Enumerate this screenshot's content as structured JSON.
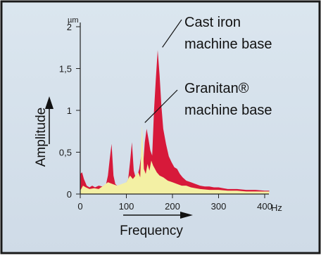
{
  "chart_data": {
    "type": "area",
    "y_unit": "µm",
    "x_unit": "Hz",
    "ylabel": "Amplitude",
    "xlabel": "Frequency",
    "xlim": [
      0,
      420
    ],
    "ylim": [
      0,
      2.2
    ],
    "x_ticks": [
      0,
      100,
      200,
      300,
      400
    ],
    "x_tick_labels": [
      "0",
      "100",
      "200",
      "300",
      "400"
    ],
    "y_ticks": [
      0,
      0.5,
      1,
      1.5,
      2
    ],
    "y_tick_labels": [
      "0",
      "0,5",
      "1",
      "1,5",
      "2"
    ],
    "grid": false,
    "series": [
      {
        "name": "Cast iron machine base",
        "color": "#d7193a",
        "x": [
          0,
          4,
          8,
          14,
          20,
          26,
          32,
          40,
          48,
          56,
          60,
          64,
          68,
          72,
          76,
          80,
          86,
          92,
          98,
          104,
          108,
          112,
          116,
          120,
          124,
          128,
          132,
          136,
          140,
          144,
          148,
          152,
          156,
          160,
          164,
          168,
          172,
          176,
          180,
          186,
          192,
          198,
          204,
          210,
          216,
          222,
          230,
          240,
          250,
          260,
          270,
          280,
          290,
          300,
          310,
          320,
          340,
          360,
          380,
          400,
          410
        ],
        "values": [
          0.24,
          0.26,
          0.18,
          0.1,
          0.08,
          0.1,
          0.08,
          0.1,
          0.09,
          0.12,
          0.22,
          0.42,
          0.6,
          0.22,
          0.12,
          0.1,
          0.09,
          0.1,
          0.12,
          0.18,
          0.38,
          0.62,
          0.28,
          0.2,
          0.22,
          0.3,
          0.45,
          0.32,
          0.62,
          0.78,
          0.66,
          0.52,
          0.46,
          1.0,
          1.38,
          1.72,
          1.42,
          1.05,
          0.78,
          0.6,
          0.45,
          0.38,
          0.32,
          0.3,
          0.24,
          0.2,
          0.16,
          0.14,
          0.12,
          0.1,
          0.09,
          0.09,
          0.08,
          0.08,
          0.07,
          0.06,
          0.06,
          0.05,
          0.05,
          0.04,
          0.04
        ]
      },
      {
        "name": "Granitan® machine base",
        "color": "#f3f0a4",
        "x": [
          0,
          6,
          12,
          20,
          30,
          40,
          50,
          60,
          70,
          80,
          90,
          100,
          108,
          114,
          120,
          126,
          130,
          134,
          138,
          142,
          146,
          150,
          154,
          158,
          162,
          166,
          172,
          180,
          190,
          200,
          210,
          220,
          230,
          240,
          250,
          260,
          280,
          300,
          320,
          340,
          360,
          380,
          400,
          410
        ],
        "values": [
          0.04,
          0.1,
          0.08,
          0.06,
          0.07,
          0.06,
          0.1,
          0.14,
          0.12,
          0.1,
          0.12,
          0.14,
          0.22,
          0.18,
          0.22,
          0.26,
          0.2,
          0.82,
          0.3,
          0.24,
          0.36,
          0.28,
          0.4,
          0.34,
          0.3,
          0.26,
          0.22,
          0.2,
          0.16,
          0.14,
          0.12,
          0.1,
          0.1,
          0.08,
          0.07,
          0.06,
          0.05,
          0.05,
          0.04,
          0.04,
          0.03,
          0.03,
          0.03,
          0.03
        ]
      }
    ],
    "annotations": [
      {
        "lines": [
          "Cast iron",
          "machine base"
        ],
        "target_x": 172,
        "target_y": 1.72
      },
      {
        "lines": [
          "Granitan®",
          "machine base"
        ],
        "target_x": 134,
        "target_y": 0.82
      }
    ]
  }
}
